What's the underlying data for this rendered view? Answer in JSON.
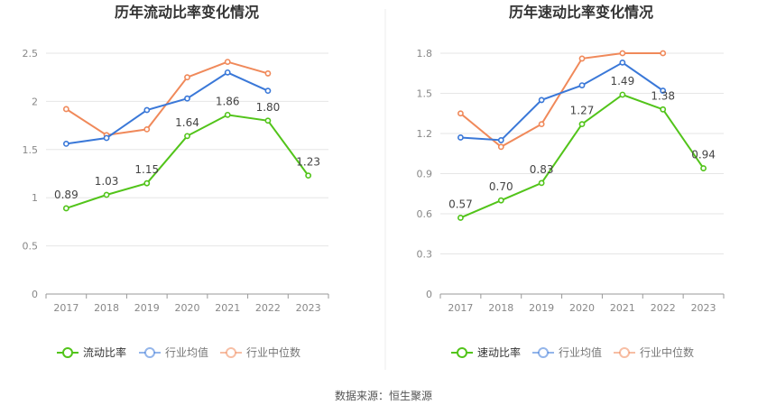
{
  "source_label": "数据来源：恒生聚源",
  "chart_data": [
    {
      "type": "line",
      "title": "历年流动比率变化情况",
      "categories": [
        "2017",
        "2018",
        "2019",
        "2020",
        "2021",
        "2022",
        "2023"
      ],
      "ylim": [
        0,
        2.5
      ],
      "yticks": [
        "0",
        "0.5",
        "1",
        "1.5",
        "2",
        "2.5"
      ],
      "grid": true,
      "legend_position": "bottom",
      "series": [
        {
          "name": "流动比率",
          "color": "#52c41a",
          "values": [
            0.89,
            1.03,
            1.15,
            1.64,
            1.86,
            1.8,
            1.23
          ],
          "labels": [
            "0.89",
            "1.03",
            "1.15",
            "1.64",
            "1.86",
            "1.80",
            "1.23"
          ]
        },
        {
          "name": "行业均值",
          "color": "#3a78d8",
          "values": [
            1.56,
            1.62,
            1.91,
            2.03,
            2.3,
            2.11,
            null
          ]
        },
        {
          "name": "行业中位数",
          "color": "#f0895a",
          "values": [
            1.92,
            1.65,
            1.71,
            2.25,
            2.41,
            2.29,
            null
          ]
        }
      ]
    },
    {
      "type": "line",
      "title": "历年速动比率变化情况",
      "categories": [
        "2017",
        "2018",
        "2019",
        "2020",
        "2021",
        "2022",
        "2023"
      ],
      "ylim": [
        0,
        1.8
      ],
      "yticks": [
        "0",
        "0.3",
        "0.6",
        "0.9",
        "1.2",
        "1.5",
        "1.8"
      ],
      "grid": true,
      "legend_position": "bottom",
      "series": [
        {
          "name": "速动比率",
          "color": "#52c41a",
          "values": [
            0.57,
            0.7,
            0.83,
            1.27,
            1.49,
            1.38,
            0.94
          ],
          "labels": [
            "0.57",
            "0.70",
            "0.83",
            "1.27",
            "1.49",
            "1.38",
            "0.94"
          ]
        },
        {
          "name": "行业均值",
          "color": "#3a78d8",
          "values": [
            1.17,
            1.15,
            1.45,
            1.56,
            1.73,
            1.52,
            null
          ]
        },
        {
          "name": "行业中位数",
          "color": "#f0895a",
          "values": [
            1.35,
            1.1,
            1.27,
            1.76,
            1.8,
            1.8,
            null
          ]
        }
      ]
    }
  ]
}
